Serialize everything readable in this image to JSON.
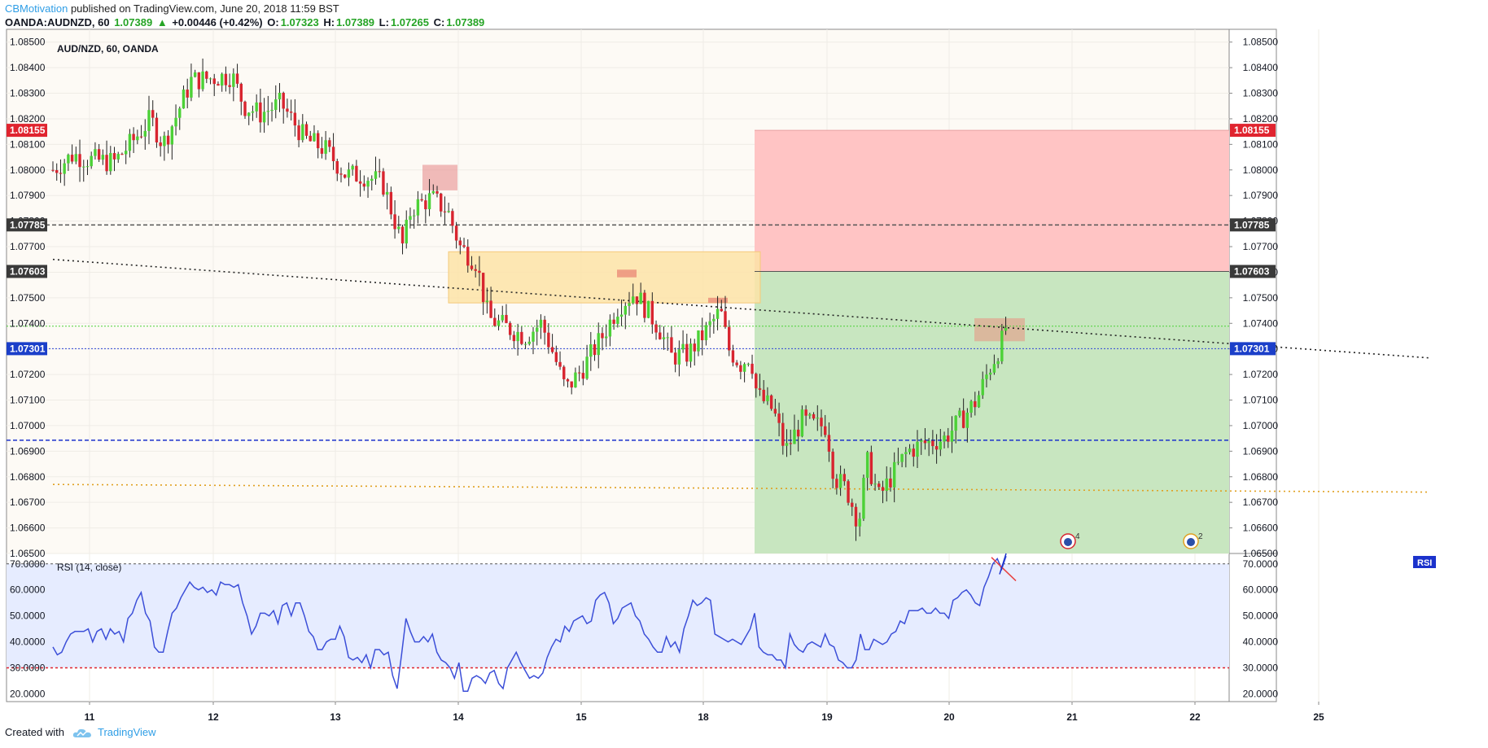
{
  "header": {
    "author": "CBMotivation",
    "published": "published on TradingView.com, June 20, 2018 11:59 BST",
    "symbol": "OANDA:AUDNZD, 60",
    "last": "1.07389",
    "change_arrow": "▲",
    "change": "+0.00446 (+0.42%)",
    "o_label": "O:",
    "o": "1.07323",
    "h_label": "H:",
    "h": "1.07389",
    "l_label": "L:",
    "l": "1.07265",
    "c_label": "C:",
    "c": "1.07389"
  },
  "footer": {
    "created_with": "Created with",
    "brand": "TradingView",
    "logo_icon": "tradingview-cloud-icon"
  },
  "colors": {
    "up": "#4cd137",
    "down": "#d8242f",
    "bg": "#fdfaf5",
    "stop_zone": "#ffc4c4",
    "target_zone": "#c8e6c0",
    "supply_zone": "#fde3a7",
    "rsi_band": "#e6ecff",
    "rsi_line": "#3c4fd8"
  },
  "chart_data": [
    {
      "type": "candlestick",
      "title": "AUD/NZD, 60, OANDA",
      "ylim": [
        1.065,
        1.0855
      ],
      "y_ticks": [
        "1.08500",
        "1.08400",
        "1.08300",
        "1.08200",
        "1.08100",
        "1.08000",
        "1.07900",
        "1.07800",
        "1.07700",
        "1.07600",
        "1.07500",
        "1.07400",
        "1.07300",
        "1.07200",
        "1.07100",
        "1.07000",
        "1.06900",
        "1.06800",
        "1.06700",
        "1.06600",
        "1.06500"
      ],
      "x_ticks": [
        "11",
        "12",
        "13",
        "14",
        "15",
        "18",
        "19",
        "20",
        "21",
        "22",
        "25"
      ],
      "price_labels": [
        {
          "text": "1.08155",
          "value": 1.08155,
          "color": "#e0242f"
        },
        {
          "text": "1.07785",
          "value": 1.07785,
          "color": "#3a3a3a"
        },
        {
          "text": "1.07603",
          "value": 1.07603,
          "color": "#3a3a3a"
        },
        {
          "text": "1.07301",
          "value": 1.07301,
          "color": "#1b3fc9"
        }
      ],
      "hlines": [
        {
          "value": 1.07785,
          "color": "#555555",
          "style": "dashed"
        },
        {
          "value": 1.07301,
          "color": "#2f45d6",
          "style": "dotted"
        },
        {
          "value": 1.07389,
          "color": "#4cd137",
          "style": "dotted"
        },
        {
          "value": 1.06943,
          "color": "#1b32cc",
          "style": "dashed"
        }
      ],
      "trendlines": [
        {
          "from": [
            "10",
            1.0765
          ],
          "to": [
            "25+",
            1.07265
          ],
          "color": "#222222",
          "style": "dotted"
        },
        {
          "from": [
            "10",
            1.0677
          ],
          "to": [
            "25+",
            1.0674
          ],
          "color": "#e0a020",
          "style": "dotted"
        }
      ],
      "zones": {
        "stop": [
          1.07603,
          1.08155
        ],
        "target": [
          1.065,
          1.07603
        ],
        "supply": [
          1.0748,
          1.0768
        ]
      },
      "event_badges": [
        "4",
        "2"
      ],
      "candles_note": "hourly OHLC, approximately 360 bars from Jun 10 to Jun 20"
    },
    {
      "type": "line",
      "title": "RSI (14, close)",
      "badge": "RSI",
      "ylim": [
        17,
        74
      ],
      "y_ticks": [
        "70.0000",
        "60.0000",
        "50.0000",
        "40.0000",
        "30.0000",
        "20.0000"
      ],
      "levels": [
        70,
        30
      ],
      "values": [
        38,
        35,
        36,
        40,
        43,
        44,
        44,
        44,
        45,
        40,
        44,
        45,
        41,
        45,
        43,
        44,
        40,
        49,
        51,
        56,
        59,
        51,
        48,
        38,
        36,
        36,
        44,
        51,
        53,
        57,
        60,
        63,
        61,
        60,
        61,
        59,
        60,
        58,
        63,
        62,
        62,
        61,
        62,
        55,
        50,
        43,
        46,
        51,
        51,
        50,
        52,
        47,
        54,
        55,
        50,
        55,
        55,
        50,
        44,
        42,
        37,
        37,
        40,
        41,
        41,
        46,
        42,
        34,
        33,
        34,
        32,
        35,
        30,
        37,
        37,
        35,
        36,
        27,
        22,
        35,
        49,
        44,
        40,
        40,
        42,
        40,
        43,
        36,
        33,
        32,
        30,
        26,
        32,
        21,
        21,
        26,
        27,
        26,
        24,
        28,
        29,
        24,
        22,
        30,
        33,
        36,
        32,
        29,
        26,
        27,
        26,
        28,
        34,
        38,
        41,
        40,
        46,
        44,
        48,
        49,
        50,
        47,
        48,
        56,
        58,
        59,
        55,
        47,
        49,
        53,
        54,
        55,
        50,
        48,
        43,
        41,
        38,
        36,
        36,
        42,
        38,
        40,
        36,
        45,
        50,
        56,
        54,
        55,
        57,
        56,
        43,
        42,
        41,
        40,
        41,
        40,
        39,
        42,
        45,
        51,
        38,
        36,
        35,
        35,
        33,
        33,
        30,
        43,
        39,
        37,
        36,
        39,
        40,
        39,
        38,
        43,
        39,
        38,
        33,
        32,
        30,
        30,
        33,
        43,
        37,
        37,
        41,
        40,
        39,
        40,
        43,
        44,
        48,
        47,
        52,
        52,
        52,
        53,
        51,
        51,
        53,
        51,
        51,
        49,
        56,
        57,
        59,
        60,
        58,
        55,
        54,
        61,
        65,
        70,
        72,
        68,
        73
      ]
    }
  ]
}
